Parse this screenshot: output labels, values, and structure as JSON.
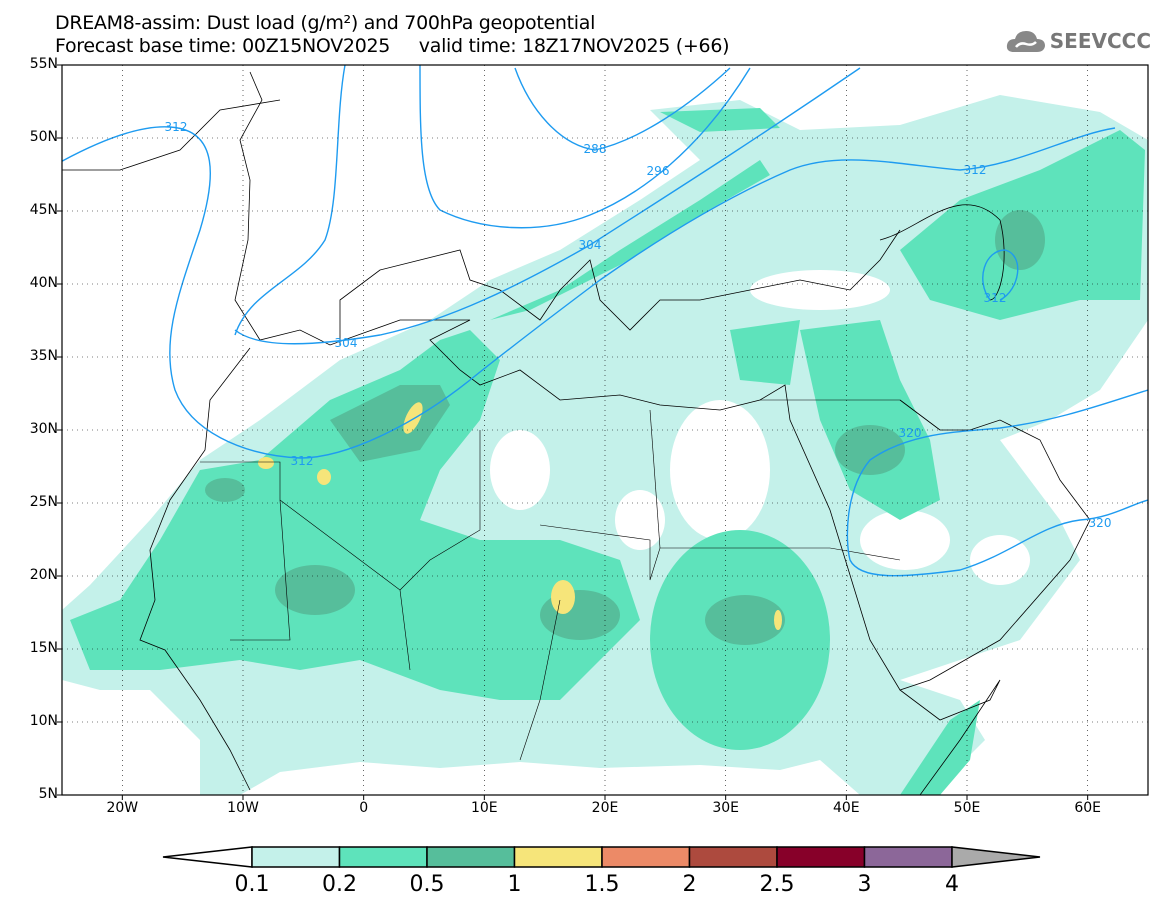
{
  "header": {
    "title_line1": "DREAM8-assim: Dust load (g/m²) and 700hPa geopotential",
    "title_line2": "Forecast base time: 00Z15NOV2025     valid time: 18Z17NOV2025 (+66)",
    "logo_text": "SEEVCCC",
    "logo_icon": "cloud-icon"
  },
  "map": {
    "lon_range": [
      -25,
      65
    ],
    "lat_range": [
      5,
      55
    ],
    "lat_labels": [
      "55N",
      "50N",
      "45N",
      "40N",
      "35N",
      "30N",
      "25N",
      "20N",
      "15N",
      "10N",
      "5N"
    ],
    "lon_labels": [
      "20W",
      "10W",
      "0",
      "10E",
      "20E",
      "30E",
      "40E",
      "50E",
      "60E"
    ],
    "contour_labels": [
      "312",
      "288",
      "296",
      "304",
      "304",
      "312",
      "312",
      "312",
      "320",
      "320"
    ],
    "contour_color": "#1e9bf0"
  },
  "colorbar": {
    "levels": [
      "0.1",
      "0.2",
      "0.5",
      "1",
      "1.5",
      "2",
      "2.5",
      "3",
      "4"
    ],
    "colors": [
      "#ffffff",
      "#c4f1ea",
      "#5ee3bb",
      "#56be9b",
      "#f6e57a",
      "#ec8a67",
      "#ad4a3e",
      "#870029",
      "#8c6799",
      "#aaaaaa"
    ]
  }
}
